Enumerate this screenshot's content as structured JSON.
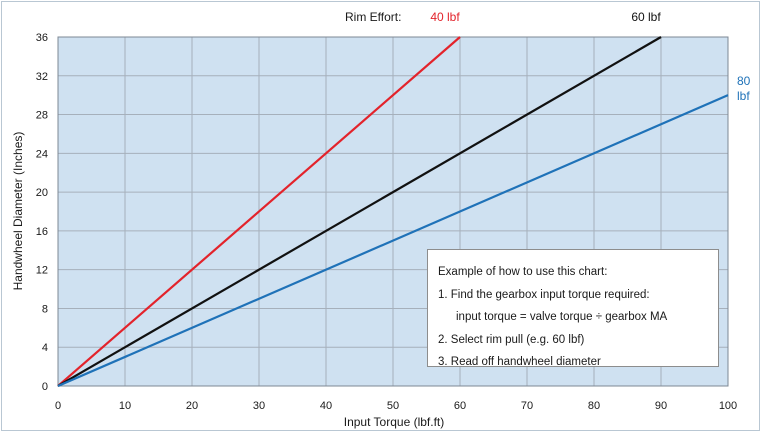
{
  "chart_data": {
    "type": "line",
    "xlabel": "Input Torque (lbf.ft)",
    "ylabel": "Handwheel Diameter (Inches)",
    "xlim": [
      0,
      100
    ],
    "ylim": [
      0,
      36
    ],
    "x_ticks": [
      0,
      10,
      20,
      30,
      40,
      50,
      60,
      70,
      80,
      90,
      100
    ],
    "y_ticks": [
      0,
      4,
      8,
      12,
      16,
      20,
      24,
      28,
      32,
      36
    ],
    "grid": true,
    "legend_title": "Rim Effort:",
    "series": [
      {
        "name": "40 lbf",
        "color": "#e3232b",
        "x": [
          0,
          60
        ],
        "y": [
          0,
          36
        ]
      },
      {
        "name": "60 lbf",
        "color": "#111111",
        "x": [
          0,
          90
        ],
        "y": [
          0,
          36
        ]
      },
      {
        "name": "80 lbf",
        "color": "#1f72b8",
        "x": [
          0,
          100
        ],
        "y": [
          0,
          30
        ]
      }
    ],
    "plot_background": "#cfe1f1",
    "grid_color": "#a6b0bb"
  },
  "note": {
    "heading": "Example of how to use this chart:",
    "step1": "1. Find the gearbox input torque required:",
    "formula": "input torque = valve torque ÷ gearbox MA",
    "step2": "2. Select rim pull (e.g. 60 lbf)",
    "step3": "3. Read off handwheel diameter"
  }
}
